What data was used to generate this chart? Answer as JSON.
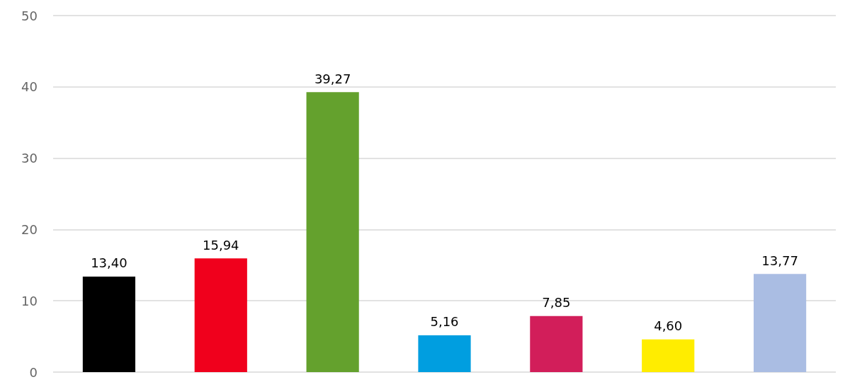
{
  "chart_data": {
    "type": "bar",
    "categories": [
      null,
      null,
      null,
      null,
      null,
      null,
      null
    ],
    "values": [
      13.4,
      15.94,
      39.27,
      5.16,
      7.85,
      4.6,
      13.77
    ],
    "colors": [
      "#000000",
      "#f0001c",
      "#64a12d",
      "#009ee0",
      "#d21e5a",
      "#ffed00",
      "#aabde3"
    ],
    "value_labels": [
      "13,40",
      "15,94",
      "39,27",
      "5,16",
      "7,85",
      "4,60",
      "13,77"
    ],
    "ylim": [
      0,
      50
    ],
    "yticks": [
      0,
      10,
      20,
      30,
      40,
      50
    ],
    "grid": "y"
  }
}
